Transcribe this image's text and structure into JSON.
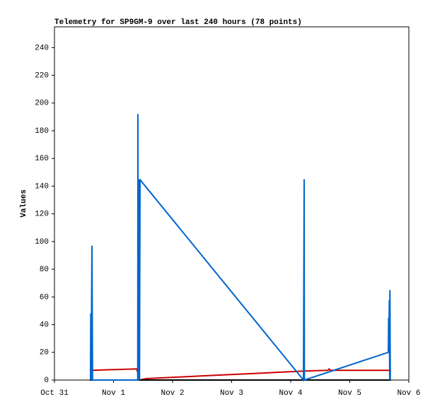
{
  "chart_data": {
    "type": "line",
    "title": "Telemetry for SP9GM-9 over last 240 hours (78 points)",
    "y_label": "Values",
    "xlim": [
      0,
      6
    ],
    "ylim": [
      0,
      255
    ],
    "xticks": [
      {
        "value": 0,
        "label": "Oct 31"
      },
      {
        "value": 1,
        "label": "Nov 1"
      },
      {
        "value": 2,
        "label": "Nov 2"
      },
      {
        "value": 3,
        "label": "Nov 3"
      },
      {
        "value": 4,
        "label": "Nov 4"
      },
      {
        "value": 5,
        "label": "Nov 5"
      },
      {
        "value": 6,
        "label": "Nov 6"
      }
    ],
    "yticks": [
      0,
      20,
      40,
      60,
      80,
      100,
      120,
      140,
      160,
      180,
      200,
      220,
      240
    ],
    "series": [
      {
        "color": "#cc0000",
        "x": [
          0.6,
          1.0,
          1.39,
          1.4,
          1.44,
          1.55,
          2.5,
          3.5,
          4.23,
          4.63,
          4.65,
          4.67,
          5.7
        ],
        "values": [
          7,
          7.5,
          8,
          7,
          0,
          1,
          3,
          5,
          6.5,
          7,
          8,
          7,
          7
        ]
      },
      {
        "color": "#000000",
        "x": [
          0.6,
          5.7
        ],
        "values": [
          0,
          0
        ]
      },
      {
        "color": "#0066cc",
        "x": [
          0.61,
          0.615,
          0.62,
          0.635,
          0.645,
          1.41,
          1.413,
          1.416,
          1.437,
          1.44,
          1.449,
          1.461,
          4.216,
          4.228,
          4.232,
          5.653,
          5.658,
          5.663,
          5.67,
          5.676,
          5.68,
          5.686
        ],
        "values": [
          0,
          48,
          0,
          97,
          0,
          0,
          192,
          0,
          145,
          0,
          145,
          144,
          0,
          145,
          0,
          20,
          45,
          32,
          58,
          0,
          65,
          0
        ]
      }
    ]
  }
}
